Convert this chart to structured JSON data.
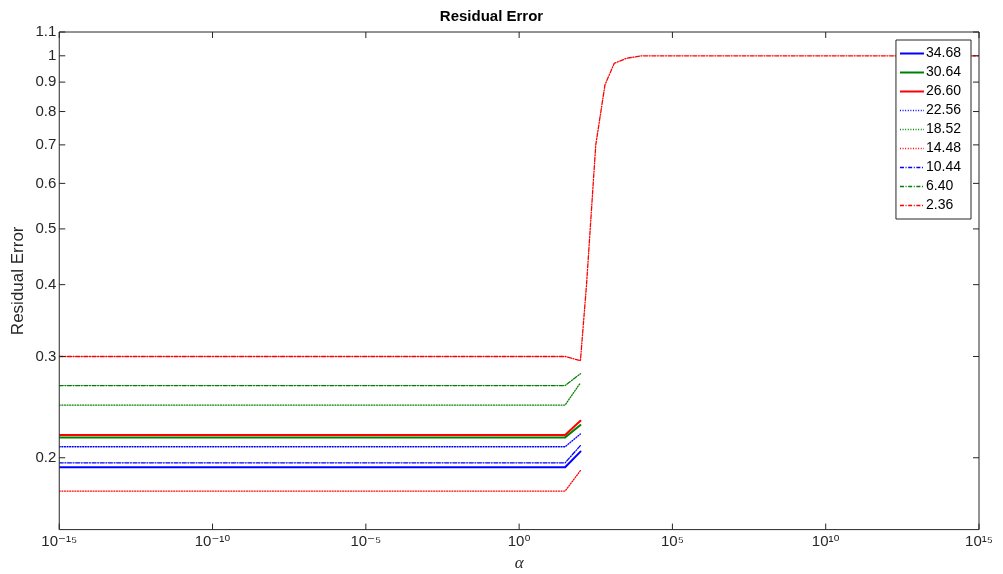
{
  "chart_data": {
    "type": "line",
    "title": "Residual Error",
    "xlabel": "α",
    "ylabel": "Residual Error",
    "x": [
      1e-15,
      31.6,
      100,
      158,
      316,
      631,
      1259,
      3162,
      10000,
      1000000000000000.0
    ],
    "series": [
      {
        "name": "34.68",
        "color": "#0000ff",
        "line_style": "solid",
        "values": [
          0.1925,
          0.1925,
          0.205,
          null,
          null,
          null,
          null,
          null,
          null,
          null
        ]
      },
      {
        "name": "30.64",
        "color": "#008000",
        "line_style": "solid",
        "values": [
          0.217,
          0.217,
          0.228,
          null,
          null,
          null,
          null,
          null,
          null,
          null
        ]
      },
      {
        "name": "26.60",
        "color": "#ff0000",
        "line_style": "solid",
        "values": [
          0.219,
          0.219,
          0.232,
          null,
          null,
          null,
          null,
          null,
          null,
          null
        ]
      },
      {
        "name": "22.56",
        "color": "#0000ff",
        "line_style": "dotted",
        "values": [
          0.209,
          0.209,
          0.22,
          null,
          null,
          null,
          null,
          null,
          null,
          null
        ]
      },
      {
        "name": "18.52",
        "color": "#008000",
        "line_style": "dotted",
        "values": [
          0.247,
          0.247,
          0.27,
          null,
          null,
          null,
          null,
          null,
          null,
          null
        ]
      },
      {
        "name": "14.48",
        "color": "#ff0000",
        "line_style": "dotted",
        "values": [
          0.175,
          0.175,
          0.19,
          null,
          null,
          null,
          null,
          null,
          null,
          null
        ]
      },
      {
        "name": "10.44",
        "color": "#0000ff",
        "line_style": "dashdot",
        "values": [
          0.196,
          0.196,
          0.21,
          null,
          null,
          null,
          null,
          null,
          null,
          null
        ]
      },
      {
        "name": "6.40",
        "color": "#008000",
        "line_style": "dashdot",
        "values": [
          0.267,
          0.267,
          0.28,
          null,
          null,
          null,
          null,
          null,
          null,
          null
        ]
      },
      {
        "name": "2.36",
        "color": "#ff0000",
        "line_style": "dashdot",
        "values": [
          0.3,
          0.3,
          0.295,
          0.4,
          0.7,
          0.89,
          0.97,
          0.99,
          1,
          1
        ]
      }
    ],
    "log": "xy",
    "xlim": [
      1e-15,
      1000000000000000.0
    ],
    "xticks": [
      {
        "value": 1e-15,
        "label": "10⁻¹⁵"
      },
      {
        "value": 1e-10,
        "label": "10⁻¹⁰"
      },
      {
        "value": 1e-05,
        "label": "10⁻⁵"
      },
      {
        "value": 1,
        "label": "10⁰"
      },
      {
        "value": 100000,
        "label": "10⁵"
      },
      {
        "value": 10000000000.0,
        "label": "10¹⁰"
      },
      {
        "value": 1000000000000000.0,
        "label": "10¹⁵"
      }
    ],
    "ylim": [
      0.15,
      1.1
    ],
    "yticks": [
      0.2,
      0.3,
      0.4,
      0.5,
      0.6,
      0.7,
      0.8,
      0.9,
      1,
      1.1
    ],
    "grid": false,
    "legend": "top right",
    "marker": "none"
  }
}
